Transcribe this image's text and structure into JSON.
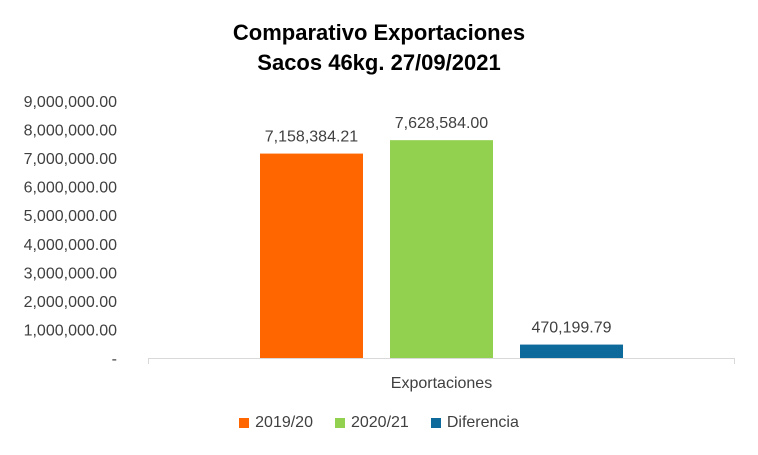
{
  "chart_data": {
    "type": "bar",
    "title": "Comparativo Exportaciones",
    "subtitle": "Sacos 46kg. 27/09/2021",
    "categories": [
      "Exportaciones"
    ],
    "series": [
      {
        "name": "2019/20",
        "values": [
          7158384.21
        ],
        "label": "7,158,384.21",
        "color": "#FF6600"
      },
      {
        "name": "2020/21",
        "values": [
          7628584.0
        ],
        "label": "7,628,584.00",
        "color": "#92D050"
      },
      {
        "name": "Diferencia",
        "values": [
          470199.79
        ],
        "label": "470,199.79",
        "color": "#0F6A9C"
      }
    ],
    "xlabel": "",
    "ylabel": "",
    "ylim": [
      0,
      9000000
    ],
    "y_ticks": [
      {
        "value": 0,
        "label": "-"
      },
      {
        "value": 1000000,
        "label": "1,000,000.00"
      },
      {
        "value": 2000000,
        "label": "2,000,000.00"
      },
      {
        "value": 3000000,
        "label": "3,000,000.00"
      },
      {
        "value": 4000000,
        "label": "4,000,000.00"
      },
      {
        "value": 5000000,
        "label": "5,000,000.00"
      },
      {
        "value": 6000000,
        "label": "6,000,000.00"
      },
      {
        "value": 7000000,
        "label": "7,000,000.00"
      },
      {
        "value": 8000000,
        "label": "8,000,000.00"
      },
      {
        "value": 9000000,
        "label": "9,000,000.00"
      }
    ],
    "grid": false,
    "legend_position": "bottom"
  }
}
